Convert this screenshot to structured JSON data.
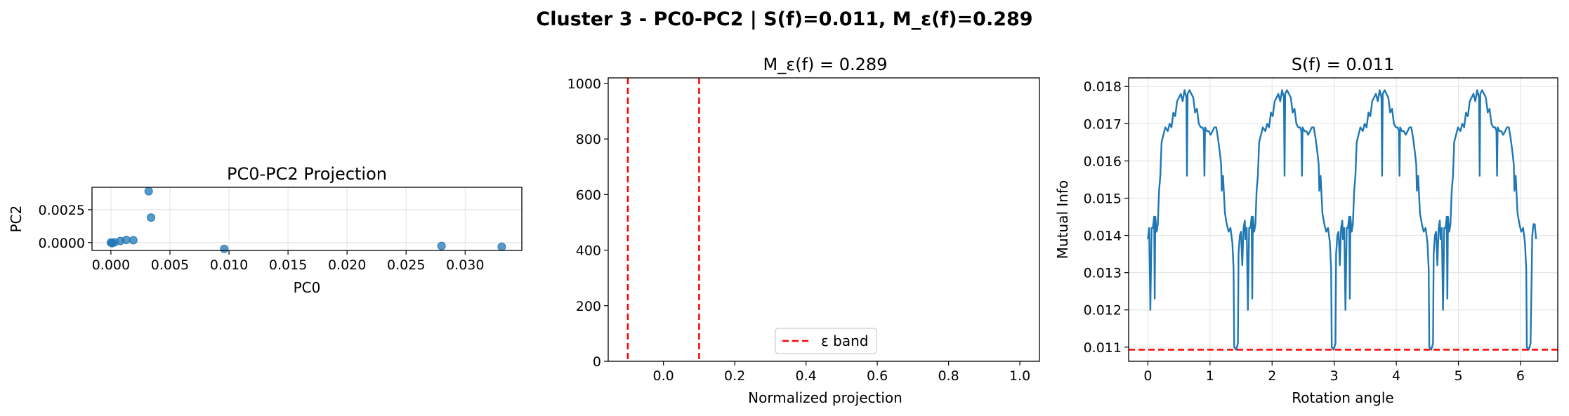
{
  "suptitle": "Cluster 3 - PC0-PC2 | S(f)=0.011, M_ε(f)=0.289",
  "chart_data": [
    {
      "type": "scatter",
      "title": "PC0-PC2 Projection",
      "xlabel": "PC0",
      "ylabel": "PC2",
      "xlim": [
        -0.0016,
        0.0348
      ],
      "ylim": [
        -0.0006,
        0.0042
      ],
      "xticks": [
        0.0,
        0.005,
        0.01,
        0.015,
        0.02,
        0.025,
        0.03
      ],
      "xtick_labels": [
        "0.000",
        "0.005",
        "0.010",
        "0.015",
        "0.020",
        "0.025",
        "0.030"
      ],
      "yticks": [
        0.0,
        0.0025
      ],
      "ytick_labels": [
        "0.0000",
        "0.0025"
      ],
      "grid": true,
      "color": "#1f77b4",
      "points": [
        {
          "x": 0.0,
          "y": 0.0
        },
        {
          "x": 0.0001,
          "y": -5e-05
        },
        {
          "x": 0.0003,
          "y": 2e-05
        },
        {
          "x": 0.0008,
          "y": 0.00012
        },
        {
          "x": 0.0013,
          "y": 0.0002
        },
        {
          "x": 0.0019,
          "y": 0.00018
        },
        {
          "x": 0.0032,
          "y": 0.0039
        },
        {
          "x": 0.0034,
          "y": 0.0019
        },
        {
          "x": 0.0096,
          "y": -0.00048
        },
        {
          "x": 0.028,
          "y": -0.00026
        },
        {
          "x": 0.0331,
          "y": -0.00032
        }
      ]
    },
    {
      "type": "line",
      "title": "M_ε(f) = 0.289",
      "xlabel": "Normalized projection",
      "ylabel": "",
      "xlim": [
        -0.155,
        1.055
      ],
      "ylim": [
        0,
        1020
      ],
      "xticks": [
        0.0,
        0.2,
        0.4,
        0.6,
        0.8,
        1.0
      ],
      "xtick_labels": [
        "0.0",
        "0.2",
        "0.4",
        "0.6",
        "0.8",
        "1.0"
      ],
      "yticks": [
        0,
        200,
        400,
        600,
        800,
        1000
      ],
      "ytick_labels": [
        "0",
        "200",
        "400",
        "600",
        "800",
        "1000"
      ],
      "grid": false,
      "vlines": [
        -0.1,
        0.1
      ],
      "vline_color": "#ff0000",
      "legend": {
        "label": "ε band",
        "placement": "lower center"
      }
    },
    {
      "type": "line",
      "title": "S(f) = 0.011",
      "xlabel": "Rotation angle",
      "ylabel": "Mutual Info",
      "xlim": [
        -0.31,
        6.6
      ],
      "ylim": [
        0.01062,
        0.01823
      ],
      "xticks": [
        0,
        1,
        2,
        3,
        4,
        5,
        6
      ],
      "xtick_labels": [
        "0",
        "1",
        "2",
        "3",
        "4",
        "5",
        "6"
      ],
      "yticks": [
        0.011,
        0.012,
        0.013,
        0.014,
        0.015,
        0.016,
        0.017,
        0.018
      ],
      "ytick_labels": [
        "0.011",
        "0.012",
        "0.013",
        "0.014",
        "0.015",
        "0.016",
        "0.017",
        "0.018"
      ],
      "grid": true,
      "line_color": "#1f77b4",
      "hline": 0.01093,
      "hline_color": "#ff0000",
      "period": 1.5708,
      "segment": [
        [
          0.0,
          0.0139
        ],
        [
          0.02,
          0.0142
        ],
        [
          0.04,
          0.012
        ],
        [
          0.06,
          0.0142
        ],
        [
          0.08,
          0.0142
        ],
        [
          0.1,
          0.0145
        ],
        [
          0.11,
          0.0123
        ],
        [
          0.12,
          0.0145
        ],
        [
          0.14,
          0.0141
        ],
        [
          0.16,
          0.0143
        ],
        [
          0.18,
          0.0152
        ],
        [
          0.2,
          0.0156
        ],
        [
          0.22,
          0.0165
        ],
        [
          0.25,
          0.0167
        ],
        [
          0.28,
          0.0169
        ],
        [
          0.32,
          0.0168
        ],
        [
          0.35,
          0.017
        ],
        [
          0.38,
          0.0169
        ],
        [
          0.41,
          0.0173
        ],
        [
          0.44,
          0.0172
        ],
        [
          0.47,
          0.0176
        ],
        [
          0.5,
          0.0177
        ],
        [
          0.53,
          0.0178
        ],
        [
          0.56,
          0.0176
        ],
        [
          0.59,
          0.0179
        ],
        [
          0.62,
          0.0177
        ],
        [
          0.63,
          0.0156
        ],
        [
          0.64,
          0.0178
        ],
        [
          0.67,
          0.0179
        ],
        [
          0.7,
          0.0178
        ],
        [
          0.73,
          0.0177
        ],
        [
          0.76,
          0.0173
        ],
        [
          0.79,
          0.0174
        ],
        [
          0.82,
          0.017
        ],
        [
          0.85,
          0.0169
        ],
        [
          0.88,
          0.0169
        ],
        [
          0.9,
          0.0168
        ],
        [
          0.91,
          0.0156
        ],
        [
          0.92,
          0.0169
        ],
        [
          0.95,
          0.0168
        ],
        [
          0.98,
          0.0168
        ],
        [
          1.01,
          0.0167
        ],
        [
          1.04,
          0.0168
        ],
        [
          1.07,
          0.0169
        ],
        [
          1.1,
          0.0169
        ],
        [
          1.13,
          0.0166
        ],
        [
          1.16,
          0.0162
        ],
        [
          1.18,
          0.0159
        ],
        [
          1.19,
          0.0152
        ],
        [
          1.21,
          0.0156
        ],
        [
          1.24,
          0.0146
        ],
        [
          1.27,
          0.0143
        ],
        [
          1.3,
          0.0141
        ],
        [
          1.33,
          0.0142
        ],
        [
          1.36,
          0.0138
        ],
        [
          1.38,
          0.0131
        ],
        [
          1.39,
          0.011
        ],
        [
          1.42,
          0.01093
        ],
        [
          1.45,
          0.0111
        ],
        [
          1.46,
          0.0135
        ],
        [
          1.48,
          0.014
        ],
        [
          1.5,
          0.0141
        ],
        [
          1.52,
          0.0132
        ],
        [
          1.54,
          0.0142
        ],
        [
          1.56,
          0.0144
        ],
        [
          1.5708,
          0.0139
        ]
      ]
    }
  ]
}
